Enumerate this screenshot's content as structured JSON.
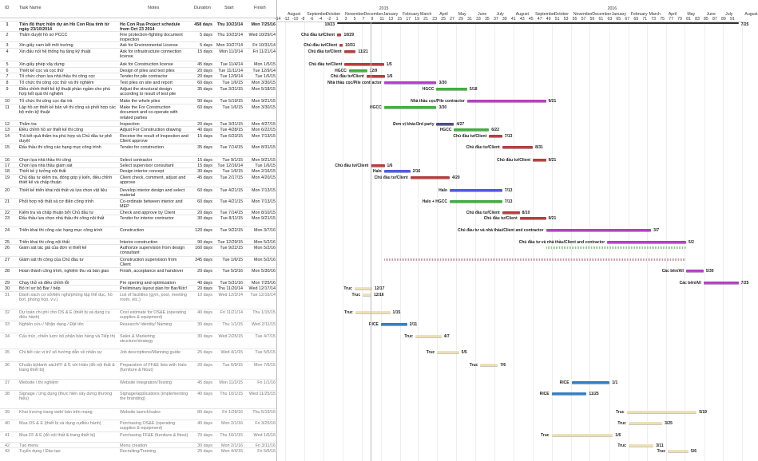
{
  "table": {
    "headers": {
      "id": "ID",
      "task_name": "Task Name",
      "notes": "Notes",
      "duration": "Duration",
      "start": "Start",
      "finish": "Finish"
    },
    "rows": [
      {
        "id": "1",
        "name": "Tiến độ thực hiện dự án Hồ Con Rùa tính từ ngày 23/10/2014",
        "notes": "Ho Con Rua Project schedule from Oct 23 2014",
        "duration": "458 days",
        "start": "Thu 10/23/14",
        "finish": "Mon 7/25/16",
        "summary": true,
        "left_label": "10/23",
        "right_label": "7/25"
      },
      {
        "id": "2",
        "name": "Thẩm duyệt hồ sơ PCCC",
        "notes": "Fire protection-fighting document inspection",
        "duration": "5 days",
        "start": "Thu 10/23/14",
        "finish": "Wed 10/29/14",
        "resource": "Chủ đầu tư/Client",
        "right_label": "10/29",
        "color": "red"
      },
      {
        "id": "3",
        "name": "Xin giấy cam kết môi trường",
        "notes": "Ask for Environmental License",
        "duration": "5 days",
        "start": "Mon 10/27/14",
        "finish": "Fri 10/31/14",
        "resource": "Chủ đầu tư/Client",
        "right_label": "10/31",
        "color": "red"
      },
      {
        "id": "4",
        "name": "Xin đấu nối hệ thống hạ tầng kỹ thuật",
        "notes": "Ask for infrastructure connection license",
        "duration": "15 days",
        "start": "Mon 11/3/14",
        "finish": "Fri 11/21/14",
        "resource": "Chủ đầu tư/Client",
        "right_label": "11/21",
        "color": "red"
      },
      {
        "id": "5",
        "name": "Xin giấy phép xây dựng",
        "notes": "Ask for Construction license",
        "duration": "45 days",
        "start": "Tue 11/4/14",
        "finish": "Mon 1/5/15",
        "resource": "Chủ đầu tư/Client",
        "right_label": "1/5",
        "color": "red"
      },
      {
        "id": "6",
        "name": "Thiết kế cọc và cọc thử",
        "notes": "Design of piles and test piles",
        "duration": "20 days",
        "start": "Tue 11/11/14",
        "finish": "Tue 12/9/14",
        "resource": "HGCC",
        "right_label": "12/9",
        "color": "green"
      },
      {
        "id": "7",
        "name": "Tổ chức chọn lựa nhà thầu thi công cọc",
        "notes": "Tender for pile contractor",
        "duration": "20 days",
        "start": "Tue 12/9/14",
        "finish": "Tue 1/6/15",
        "resource": "Chủ đầu tư/Client",
        "right_label": "1/6",
        "color": "red"
      },
      {
        "id": "8",
        "name": "Tổ chức thi công cọc thử và thí nghiệm",
        "notes": "Test piles on site and report",
        "duration": "60 days",
        "start": "Tue 1/6/15",
        "finish": "Mon 3/30/15",
        "resource": "Nhà thầu cọc/Pile contractor",
        "right_label": "3/30",
        "color": "purple"
      },
      {
        "id": "9",
        "name": "Điều chỉnh thiết kế kỹ thuật phần ngầm cho phù hợp kết quả thí nghiệm",
        "notes": "Adjust the structural design according to result of test pile",
        "duration": "35 days",
        "start": "Tue 3/31/15",
        "finish": "Mon 5/18/15",
        "resource": "HGCC",
        "right_label": "5/18",
        "color": "green"
      },
      {
        "id": "10",
        "name": "Tổ chức thi công cọc đại trà",
        "notes": "Make the whole piles",
        "duration": "90 days",
        "start": "Tue 5/19/15",
        "finish": "Mon 9/21/15",
        "resource": "Nhà thầu cọc/Pile contractor",
        "right_label": "9/21",
        "color": "purple"
      },
      {
        "id": "11",
        "name": "Lập hồ sơ thiết kế bản vẽ thi công và phối hợp các bộ môn kỹ thuật",
        "notes": "Make the For Construction document and co-operate with related parties",
        "duration": "60 days",
        "start": "Tue 1/6/15",
        "finish": "Mon 3/30/15",
        "resource": "HGCC",
        "right_label": "3/30",
        "color": "green"
      },
      {
        "id": "12",
        "name": "Thẩm tra",
        "notes": "Inspection",
        "duration": "20 days",
        "start": "Tue 3/31/15",
        "finish": "Mon 4/27/15",
        "resource": "Đơn vị khác/3rd party",
        "right_label": "4/27",
        "color": "navy"
      },
      {
        "id": "13",
        "name": "Điều chỉnh hồ sơ thiết kế thi công",
        "notes": "Adjust For Construction drawing",
        "duration": "40 days",
        "start": "Tue 4/28/15",
        "finish": "Mon 6/22/15",
        "resource": "HGCC",
        "right_label": "6/22",
        "color": "green"
      },
      {
        "id": "14",
        "name": "Trả kết quả thẩm tra phù hợp và Chủ đầu tư phê duyệt",
        "notes": "Receive the result of Inspection and Client approve",
        "duration": "15 days",
        "start": "Tue 6/23/15",
        "finish": "Mon 7/13/15",
        "resource": "Chủ đầu tư/Client",
        "right_label": "7/13",
        "color": "red"
      },
      {
        "id": "15",
        "name": "Đấu thầu thi công các hạng mục công trình",
        "notes": "Tender for construction",
        "duration": "35 days",
        "start": "Tue 7/14/15",
        "finish": "Mon 8/31/15",
        "resource": "Chủ đầu tư/Client",
        "right_label": "8/31",
        "color": "red"
      },
      {
        "id": "16",
        "name": "Chọn lựa nhà thầu thi công",
        "notes": "Select contractor",
        "duration": "15 days",
        "start": "Tue 9/1/15",
        "finish": "Mon 9/21/15",
        "resource": "Chủ đầu tư/Client",
        "right_label": "9/21",
        "color": "red"
      },
      {
        "id": "17",
        "name": "Chọn lựa nhà thầu giám sát",
        "notes": "Select supervisor consultant",
        "duration": "15 days",
        "start": "Tue 12/16/14",
        "finish": "Tue 1/6/15",
        "resource": "Chủ đầu tư/Client",
        "right_label": "1/6",
        "color": "red"
      },
      {
        "id": "18",
        "name": "Thiết kế ý tưởng nội thất",
        "notes": "Design interior concept",
        "duration": "30 days",
        "start": "Tue 1/6/15",
        "finish": "Mon 2/16/15",
        "resource": "Halo",
        "right_label": "2/16",
        "color": "blue"
      },
      {
        "id": "19",
        "name": "Chủ đầu tư kiểm tra, đóng góp ý kiến, điều chỉnh thiết kế và chấp thuận",
        "notes": "Client check, comment, adjust and approve",
        "duration": "45 days",
        "start": "Tue 2/17/15",
        "finish": "Mon 4/20/15",
        "resource": "Chủ đầu tư/Client",
        "right_label": "4/20",
        "color": "red"
      },
      {
        "id": "20",
        "name": "Thiết kế triển khai nội thất và lựa chọn vật liệu",
        "notes": "Develop interior design and select material",
        "duration": "60 days",
        "start": "Tue 4/21/15",
        "finish": "Mon 7/13/15",
        "resource": "Halo",
        "right_label": "7/13",
        "color": "blue"
      },
      {
        "id": "21",
        "name": "Phối hợp nội thất và cơ điện công trình",
        "notes": "Co-ordinate between interior and MEP",
        "duration": "60 days",
        "start": "Tue 4/21/15",
        "finish": "Mon 7/13/15",
        "resource": "Halo + HGCC",
        "right_label": "7/13",
        "color": "green"
      },
      {
        "id": "22",
        "name": "Kiểm tra và chấp thuận bởi Chủ đầu tư",
        "notes": "Check and approve by Client",
        "duration": "20 days",
        "start": "Tue 7/14/15",
        "finish": "Mon 8/10/15",
        "resource": "Chủ đầu tư/Client",
        "right_label": "8/10",
        "color": "red"
      },
      {
        "id": "23",
        "name": "Đấu thầu lựa chọn nhà thầu thi công nội thất",
        "notes": "Tender for interior contractor",
        "duration": "30 days",
        "start": "Tue 8/11/15",
        "finish": "Mon 9/21/15",
        "resource": "Chủ đầu tư/Client",
        "right_label": "9/21",
        "color": "red"
      },
      {
        "id": "24",
        "name": "Triển khai thi công các hạng mục công trình",
        "notes": "Construction",
        "duration": "120 days",
        "start": "Tue 9/22/15",
        "finish": "Mon 3/7/16",
        "resource": "Chủ đầu tư và nhà thầu/Client and contractor",
        "right_label": "3/7",
        "color": "purple"
      },
      {
        "id": "25",
        "name": "Triển khai thi công nội thất",
        "notes": "Interior construction",
        "duration": "90 days",
        "start": "Tue 12/29/15",
        "finish": "Mon 5/2/16",
        "resource": "Chủ đầu tư và nhà thầu/Client and contractor",
        "right_label": "5/2",
        "color": "purple"
      },
      {
        "id": "26",
        "name": "Giám sát tác giả của đơn vị thiết kế",
        "notes": "Authorize supervision from design consultant",
        "duration": "160 days",
        "start": "Tue 9/22/15",
        "finish": "Mon 5/2/16",
        "color": "green-dotted"
      },
      {
        "id": "27",
        "name": "Giám sát thi công của Chủ đầu tư",
        "notes": "Construction supervision from Client",
        "duration": "345 days",
        "start": "Tue 1/6/15",
        "finish": "Mon 5/2/16",
        "color": "red-dotted"
      },
      {
        "id": "28",
        "name": "Hoàn thành công trình, nghiệm thu và bàn giao",
        "notes": "Finish, acceptance and handover",
        "duration": "20 days",
        "start": "Tue 5/3/16",
        "finish": "Mon 5/30/16",
        "resource": "Các bên/All",
        "right_label": "5/30",
        "color": "purple"
      },
      {
        "id": "29",
        "name": "Chạy thử và điều chỉnh lỗi",
        "notes": "Pre opening and optimization",
        "duration": "40 days",
        "start": "Tue 5/31/16",
        "finish": "Mon 7/25/16",
        "resource": "Các bên/All",
        "right_label": "7/25",
        "color": "purple"
      },
      {
        "id": "30",
        "name": "Bố trí sơ bộ Bar / bếp",
        "notes": "Preliminary layout plan for Bar/Kitc!",
        "duration": "20 days",
        "start": "Thu 11/20/14",
        "finish": "Wed 12/17/14",
        "resource": "Truc",
        "right_label": "12/17",
        "color": "tan"
      },
      {
        "id": "31",
        "name": "Danh sách cơ sở/tiện nghi/phòng tập thể dục, hồ bơi, phòng họp, v.v.)",
        "notes": "List of facilities (gym, pool, meeting room, etc.)",
        "duration": "10 days",
        "start": "Wed 12/3/14",
        "finish": "Tue 12/16/14",
        "resource": "Truc",
        "right_label": "12/16",
        "color": "tan",
        "muted": true
      },
      {
        "id": "32",
        "name": "Dự toán chi phí cho OS & E (thiết bị và dụng cụ điều hành)",
        "notes": "Cost estimate for OS&E (operating supplies & equipment)",
        "duration": "40 days",
        "start": "Fri 11/21/14",
        "finish": "Thu 1/15/15",
        "resource": "Truc",
        "right_label": "1/15",
        "color": "tan",
        "muted": true
      },
      {
        "id": "33",
        "name": "Nghiên cứu / Nhận dạng / Đặt tên",
        "notes": "Research/ Identity/ Naming",
        "duration": "30 days",
        "start": "Thu 1/1/15",
        "finish": "Wed 2/11/15",
        "resource": "RICE",
        "right_label": "2/11",
        "color": "steel",
        "muted": true
      },
      {
        "id": "34",
        "name": "Cấu trúc, chiến lược bộ phận bán hàng và Tiếp thị",
        "notes": "Sales & Marketing structure/strategy",
        "duration": "30 days",
        "start": "Wed 2/25/15",
        "finish": "Tue 4/7/15",
        "resource": "Truc",
        "right_label": "4/7",
        "color": "tan",
        "muted": true
      },
      {
        "id": "35",
        "name": "Chi tiết các vị trí/ sổ hướng dẫn về nhân sự",
        "notes": "Job descriptions/Manning guide",
        "duration": "25 days",
        "start": "Wed 4/1/15",
        "finish": "Tue 5/5/15",
        "resource": "Truc",
        "right_label": "5/5",
        "color": "tan",
        "muted": true
      },
      {
        "id": "36",
        "name": "Chuẩn bị/danh sáchFF & E với Halo (đồ nội thất & trang thiết bị)",
        "notes": "Preparation of FF&E lists with Halo (furniture & fitout)",
        "duration": "20 days",
        "start": "Tue 6/9/15",
        "finish": "Mon 7/6/15",
        "resource": "Truc",
        "right_label": "7/6",
        "color": "tan",
        "muted": true
      },
      {
        "id": "37",
        "name": "Website / thí nghiệm",
        "notes": "Website Integration/Testing",
        "duration": "45 days",
        "start": "Mon 11/2/15",
        "finish": "Fri 1/1/16",
        "resource": "RICE",
        "right_label": "1/1",
        "color": "steel",
        "muted": true
      },
      {
        "id": "38",
        "name": "Signage / ứng dụng (thực hiện xây dựng thương hiệu)",
        "notes": "Signage/applications (implementing the branding)",
        "duration": "40 days",
        "start": "Thu 10/1/15",
        "finish": "Wed 11/25/15",
        "resource": "RICE",
        "right_label": "11/25",
        "color": "steel",
        "muted": true
      },
      {
        "id": "39",
        "name": "Khai trương trang web/ bán trên mạng",
        "notes": "Website launch/sales",
        "duration": "80 days",
        "start": "Fri 1/29/16",
        "finish": "Thu 5/19/16",
        "resource": "Truc",
        "right_label": "5/19",
        "color": "tan",
        "muted": true
      },
      {
        "id": "40",
        "name": "Mua OS & E (thiết bị và dụng cụđiều hành)",
        "notes": "Purchasing OS&E (operating supplies & equipment)",
        "duration": "40 days",
        "start": "Mon 2/1/16",
        "finish": "Fri 3/25/16",
        "resource": "Truc",
        "right_label": "3/25",
        "color": "tan",
        "muted": true
      },
      {
        "id": "41",
        "name": "Mua FF & E (đồ nội thất & trang thiết bị)",
        "notes": "Purchasing FF&E (furniture & fitout)",
        "duration": "70 days",
        "start": "Thu 10/1/15",
        "finish": "Wed 1/6/16",
        "resource": "Truc",
        "right_label": "1/6",
        "color": "tan",
        "muted": true
      },
      {
        "id": "42",
        "name": "Tạo menu",
        "notes": "Menu creation",
        "duration": "30 days",
        "start": "Mon 2/1/16",
        "finish": "Fri 3/11/16",
        "resource": "Truc",
        "right_label": "3/11",
        "color": "tan",
        "muted": true
      },
      {
        "id": "43",
        "name": "Tuyển dụng / Đào tạo",
        "notes": "Recruiting/Training",
        "duration": "25 days",
        "start": "Mon 4/4/16",
        "finish": "Fri 5/6/16",
        "resource": "Truc",
        "right_label": "5/6",
        "color": "tan",
        "muted": true
      }
    ]
  },
  "timeline": {
    "years": [
      "2015",
      "2016"
    ],
    "months": [
      "August",
      "September",
      "October",
      "November",
      "December",
      "January",
      "February",
      "March",
      "April",
      "May",
      "June",
      "July",
      "August",
      "September",
      "October",
      "November",
      "December",
      "January",
      "February",
      "March",
      "April",
      "May",
      "June",
      "July",
      "August"
    ],
    "week_labels": [
      "-14",
      "-12",
      "-10",
      "-8",
      "-6",
      "-4",
      "-2",
      "1",
      "3",
      "5",
      "7",
      "9",
      "11",
      "13",
      "15",
      "17",
      "19",
      "21",
      "23",
      "25",
      "27",
      "29",
      "31",
      "33",
      "35",
      "37",
      "39",
      "41",
      "43",
      "45",
      "47",
      "49",
      "51",
      "53",
      "55",
      "57",
      "59",
      "61",
      "63",
      "65",
      "67",
      "69",
      "71",
      "73",
      "75",
      "77",
      "79",
      "81",
      "83",
      "85",
      "87",
      "89",
      "91"
    ]
  },
  "colors": {
    "red": "#b83a3a",
    "green": "#3fae3f",
    "purple": "#b43cc4",
    "navy": "#474b82",
    "blue": "#4a57ea",
    "tan": "#efe1b4",
    "steel": "#2f7dc6",
    "summary": "#333333",
    "green-dotted": "#8fc48f",
    "red-dotted": "#c79aa0"
  }
}
